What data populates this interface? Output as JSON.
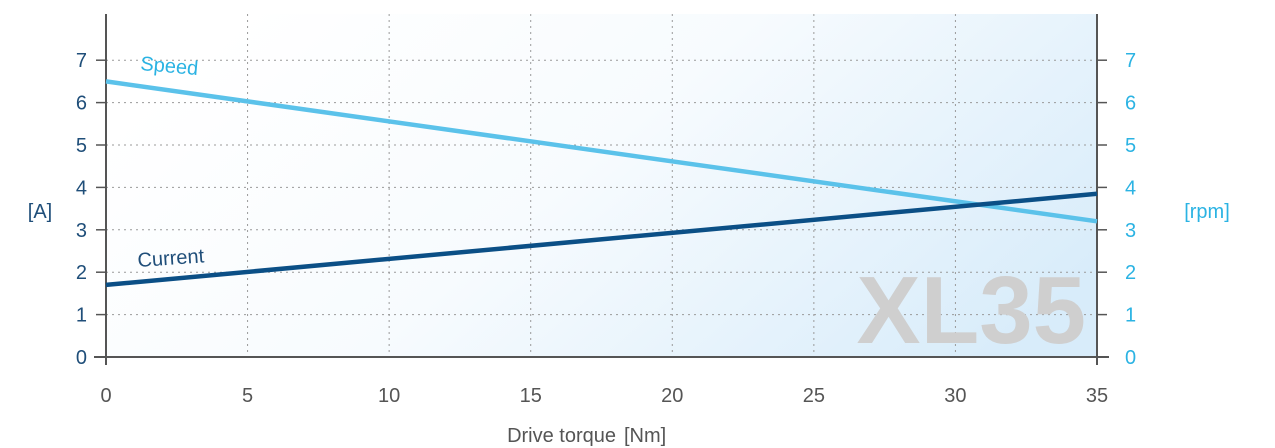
{
  "chart_data": {
    "type": "line",
    "watermark": "XL35",
    "xlabel": "Drive torque",
    "xunit": "[Nm]",
    "xlim": [
      0,
      35
    ],
    "x_ticks": [
      0,
      5,
      10,
      15,
      20,
      25,
      30,
      35
    ],
    "y_left": {
      "unit": "[A]",
      "lim": [
        0,
        8
      ],
      "ticks": [
        0,
        1,
        2,
        3,
        4,
        5,
        6,
        7
      ],
      "color": "#1f4e79"
    },
    "y_right": {
      "unit": "[rpm]",
      "lim": [
        0,
        8
      ],
      "ticks": [
        0,
        1,
        2,
        3,
        4,
        5,
        6,
        7
      ],
      "color": "#2bb3e3"
    },
    "grid": true,
    "series": [
      {
        "name": "Speed",
        "axis": "right",
        "color": "#5bc2ea",
        "x": [
          0,
          35
        ],
        "y": [
          6.5,
          3.2
        ]
      },
      {
        "name": "Current",
        "axis": "left",
        "color": "#0b4f86",
        "x": [
          0,
          35
        ],
        "y": [
          1.7,
          3.85
        ]
      }
    ]
  }
}
